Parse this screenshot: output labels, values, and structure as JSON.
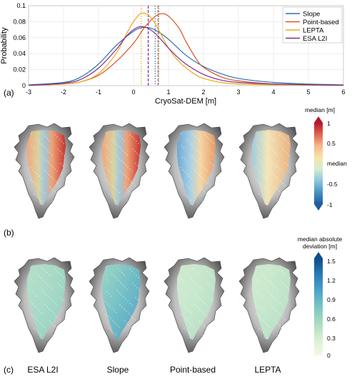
{
  "panels": {
    "a": "(a)",
    "b": "(b)",
    "c": "(c)"
  },
  "chart_data": {
    "type": "line",
    "xlabel": "CryoSat-DEM [m]",
    "ylabel": "Probability",
    "xlim": [
      -3,
      6
    ],
    "ylim": [
      0,
      0.1
    ],
    "xticks": [
      "-3",
      "-2",
      "-1",
      "0",
      "1",
      "2",
      "3",
      "4",
      "5",
      "6"
    ],
    "yticks": [
      "0",
      "0.02",
      "0.04",
      "0.06",
      "0.08",
      "0.1"
    ],
    "grid": true,
    "legend_position": "top-right",
    "series": [
      {
        "name": "Slope",
        "color": "#2f6fb3",
        "x": [
          -3,
          -2,
          -1.5,
          -1,
          -0.5,
          0,
          0.3,
          0.6,
          1,
          1.5,
          2,
          2.5,
          3,
          4,
          5,
          6
        ],
        "y": [
          0.001,
          0.004,
          0.011,
          0.027,
          0.05,
          0.068,
          0.073,
          0.07,
          0.058,
          0.038,
          0.024,
          0.015,
          0.009,
          0.004,
          0.002,
          0.001
        ]
      },
      {
        "name": "Point-based",
        "color": "#d9531e",
        "x": [
          -3,
          -2,
          -1.5,
          -1,
          -0.5,
          0,
          0.3,
          0.6,
          0.8,
          1,
          1.3,
          1.5,
          1.8,
          2,
          2.5,
          3,
          4,
          5,
          6
        ],
        "y": [
          0.0005,
          0.002,
          0.005,
          0.013,
          0.03,
          0.053,
          0.072,
          0.086,
          0.09,
          0.087,
          0.072,
          0.055,
          0.033,
          0.023,
          0.011,
          0.006,
          0.002,
          0.001,
          0.0005
        ]
      },
      {
        "name": "LEPTA",
        "color": "#eda91b",
        "x": [
          -3,
          -2,
          -1.5,
          -1,
          -0.5,
          -0.2,
          0,
          0.2,
          0.4,
          0.6,
          0.8,
          1,
          1.3,
          1.6,
          1.8,
          2,
          2.5,
          3,
          4,
          6
        ],
        "y": [
          0.0005,
          0.002,
          0.005,
          0.015,
          0.04,
          0.065,
          0.08,
          0.09,
          0.089,
          0.079,
          0.063,
          0.047,
          0.03,
          0.019,
          0.013,
          0.009,
          0.004,
          0.002,
          0.001,
          0.0003
        ]
      },
      {
        "name": "ESA L2I",
        "color": "#7e2f8e",
        "x": [
          -3,
          -2,
          -1.5,
          -1,
          -0.5,
          -0.2,
          0,
          0.2,
          0.4,
          0.6,
          0.8,
          1,
          1.3,
          1.6,
          2,
          2.5,
          3,
          4,
          6
        ],
        "y": [
          0.0005,
          0.003,
          0.008,
          0.022,
          0.045,
          0.062,
          0.07,
          0.074,
          0.072,
          0.066,
          0.057,
          0.047,
          0.034,
          0.024,
          0.014,
          0.007,
          0.004,
          0.002,
          0.0005
        ]
      }
    ],
    "vlines": [
      {
        "x": 0.22,
        "color": "#eda91b",
        "style": "dotted"
      },
      {
        "x": 0.42,
        "color": "#7e2f8e",
        "style": "dashed"
      },
      {
        "x": 0.62,
        "color": "#2f6fb3",
        "style": "dotted"
      },
      {
        "x": 0.72,
        "color": "#d9531e",
        "style": "dotted"
      },
      {
        "x": 0.7,
        "color": "#888888",
        "style": "dashed"
      }
    ]
  },
  "colorbar_median": {
    "title": "median [m]",
    "mid_label": "median",
    "ticks": [
      "1",
      "0.5",
      "-0.5",
      "-1"
    ],
    "colors": [
      "#b2182b",
      "#e0654e",
      "#f7b88e",
      "#f5e6a8",
      "#d4ecd2",
      "#8ec6dd",
      "#4891c0",
      "#1f5d9c"
    ]
  },
  "colorbar_mad": {
    "title_line1": "median absolute",
    "title_line2": "deviation [m]",
    "ticks": [
      "1.5",
      "1.2",
      "0.9",
      "0.6",
      "0.3",
      "0"
    ],
    "colors": [
      "#0c4d8a",
      "#2b7bb6",
      "#4ea3c9",
      "#7cc5c4",
      "#a9dcc0",
      "#d8f0d2",
      "#f2fae8"
    ]
  },
  "maps": [
    {
      "caption": "ESA L2I"
    },
    {
      "caption": "Slope"
    },
    {
      "caption": "Point-based"
    },
    {
      "caption": "LEPTA"
    }
  ]
}
